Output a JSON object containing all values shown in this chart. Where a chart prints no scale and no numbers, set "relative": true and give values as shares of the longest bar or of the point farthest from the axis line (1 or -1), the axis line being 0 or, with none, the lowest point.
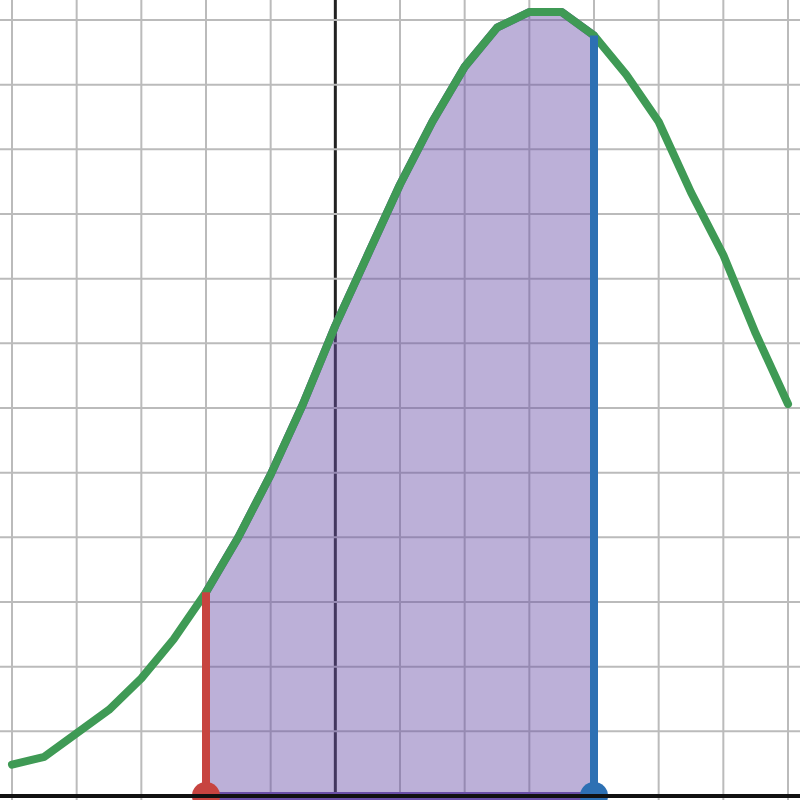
{
  "chart_data": {
    "type": "line",
    "relative": true,
    "grid": true,
    "categories": [
      null,
      null,
      null,
      null,
      null,
      null,
      null,
      null,
      null,
      null,
      null,
      null,
      null,
      null,
      null,
      null,
      null,
      null,
      null,
      null,
      null,
      null,
      null,
      null,
      null
    ],
    "series": [
      {
        "type": "area",
        "color": "#6a4fa8",
        "values": [
          null,
          null,
          null,
          null,
          null,
          null,
          0.26,
          0.33,
          0.41,
          0.5,
          0.6,
          0.69,
          0.78,
          0.86,
          0.93,
          0.98,
          1,
          1,
          0.97,
          null,
          null,
          null,
          null,
          null,
          null
        ]
      },
      {
        "color": "#3f9a55",
        "values": [
          0.04,
          0.05,
          0.08,
          0.11,
          0.15,
          0.2,
          0.26,
          0.33,
          0.41,
          0.5,
          0.6,
          0.69,
          0.78,
          0.86,
          0.93,
          0.98,
          1,
          1,
          0.97,
          0.92,
          0.86,
          0.77,
          0.69,
          0.59,
          0.5
        ]
      }
    ]
  }
}
